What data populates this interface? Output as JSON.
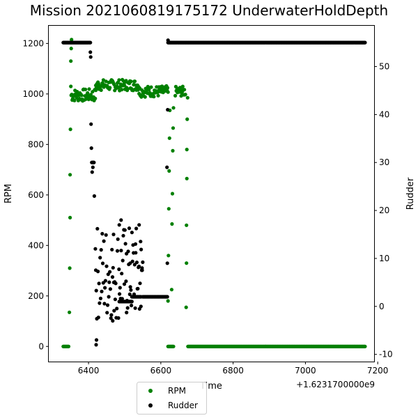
{
  "chart_data": {
    "type": "scatter",
    "title": "Mission 2021060819175172 UnderwaterHoldDepth",
    "xlabel": "Time",
    "x_offset_text": "+1.6231700000e9",
    "ylabel_left": "RPM",
    "ylabel_right": "Rudder",
    "xlim": [
      6290,
      7190
    ],
    "ylim_left": [
      -60,
      1270
    ],
    "ylim_right": [
      -11.5,
      58.5
    ],
    "x_ticks": [
      6400,
      6600,
      6800,
      7000,
      7200
    ],
    "y_ticks_left": [
      0,
      200,
      400,
      600,
      800,
      1000,
      1200
    ],
    "y_ticks_right": [
      -10,
      0,
      10,
      20,
      30,
      40,
      50
    ],
    "grid": false,
    "legend": {
      "placement": "bottom-center",
      "entries": [
        "RPM",
        "Rudder"
      ]
    },
    "colors": {
      "RPM": "#008000",
      "Rudder": "#000000"
    },
    "series": [
      {
        "name": "RPM",
        "axis": "left",
        "segments": [
          {
            "x_start": 6330,
            "x_end": 6345,
            "value": 0
          },
          {
            "x_start": 6352,
            "x_end": 6420,
            "value": 995,
            "jitter": 25
          },
          {
            "x_start": 6420,
            "x_end": 6540,
            "value": 1035,
            "jitter": 22
          },
          {
            "x_start": 6540,
            "x_end": 6620,
            "value": 1010,
            "jitter": 22
          },
          {
            "x_start": 6620,
            "x_end": 6635,
            "value": 0
          },
          {
            "x_start": 6640,
            "x_end": 6668,
            "value": 1010,
            "jitter": 20
          },
          {
            "x_start": 6675,
            "x_end": 7165,
            "value": 0
          }
        ],
        "points": [
          {
            "x": 6347,
            "y": 135
          },
          {
            "x": 6348,
            "y": 310
          },
          {
            "x": 6349,
            "y": 510
          },
          {
            "x": 6349,
            "y": 680
          },
          {
            "x": 6350,
            "y": 860
          },
          {
            "x": 6351,
            "y": 1030
          },
          {
            "x": 6351,
            "y": 1130
          },
          {
            "x": 6352,
            "y": 1180
          },
          {
            "x": 6353,
            "y": 1215
          },
          {
            "x": 6620,
            "y": 180
          },
          {
            "x": 6621,
            "y": 360
          },
          {
            "x": 6622,
            "y": 545
          },
          {
            "x": 6623,
            "y": 695
          },
          {
            "x": 6624,
            "y": 825
          },
          {
            "x": 6625,
            "y": 935
          },
          {
            "x": 6630,
            "y": 225
          },
          {
            "x": 6631,
            "y": 485
          },
          {
            "x": 6632,
            "y": 605
          },
          {
            "x": 6633,
            "y": 775
          },
          {
            "x": 6634,
            "y": 865
          },
          {
            "x": 6635,
            "y": 945
          },
          {
            "x": 6670,
            "y": 155
          },
          {
            "x": 6671,
            "y": 330
          },
          {
            "x": 6671,
            "y": 480
          },
          {
            "x": 6672,
            "y": 665
          },
          {
            "x": 6672,
            "y": 780
          },
          {
            "x": 6673,
            "y": 900
          },
          {
            "x": 6674,
            "y": 985
          }
        ]
      },
      {
        "name": "Rudder",
        "axis": "right",
        "segments": [
          {
            "x_start": 6330,
            "x_end": 6405,
            "value": 55
          },
          {
            "x_start": 6410,
            "x_end": 6415,
            "value": 30
          },
          {
            "x_start": 6420,
            "x_end": 6550,
            "value": 7,
            "jitter": 10
          },
          {
            "x_start": 6485,
            "x_end": 6520,
            "value": 1
          },
          {
            "x_start": 6520,
            "x_end": 6545,
            "value": 2
          },
          {
            "x_start": 6550,
            "x_end": 6618,
            "value": 2
          },
          {
            "x_start": 6620,
            "x_end": 7165,
            "value": 55
          }
        ],
        "points": [
          {
            "x": 6405,
            "y": 53
          },
          {
            "x": 6406,
            "y": 52
          },
          {
            "x": 6407,
            "y": 38
          },
          {
            "x": 6408,
            "y": 33
          },
          {
            "x": 6409,
            "y": 30
          },
          {
            "x": 6410,
            "y": 28
          },
          {
            "x": 6412,
            "y": 29
          },
          {
            "x": 6414,
            "y": 30
          },
          {
            "x": 6416,
            "y": 23
          },
          {
            "x": 6419,
            "y": 12
          },
          {
            "x": 6421,
            "y": -8
          },
          {
            "x": 6422,
            "y": -7
          },
          {
            "x": 6467,
            "y": -3
          },
          {
            "x": 6470,
            "y": 5
          },
          {
            "x": 6485,
            "y": 17
          },
          {
            "x": 6490,
            "y": 18
          },
          {
            "x": 6505,
            "y": 11
          },
          {
            "x": 6515,
            "y": 9
          },
          {
            "x": 6530,
            "y": 13
          },
          {
            "x": 6540,
            "y": 17
          },
          {
            "x": 6545,
            "y": 0
          },
          {
            "x": 6548,
            "y": 8
          },
          {
            "x": 6617,
            "y": 29
          },
          {
            "x": 6618,
            "y": 9
          },
          {
            "x": 6619,
            "y": 41
          },
          {
            "x": 6620,
            "y": 55.5
          }
        ]
      }
    ]
  }
}
